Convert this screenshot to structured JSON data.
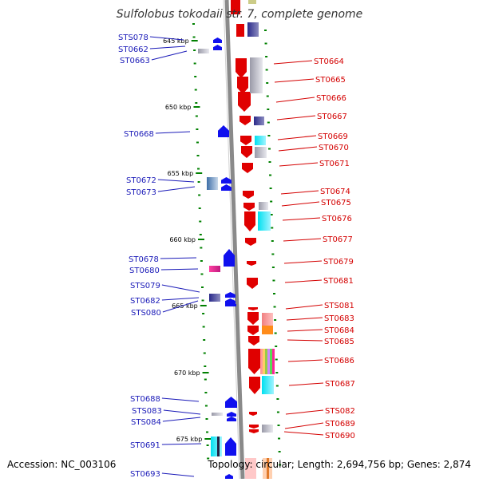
{
  "title": "Sulfolobus tokodaii str. 7, complete genome",
  "footer": {
    "accession": "Accession: NC_003106",
    "topology": "Topology: circular; Length: 2,694,756 bp; Genes: 2,874"
  },
  "colors": {
    "forward": "#e00000",
    "reverse": "#1010ee",
    "backbone": "#888888",
    "tick": "#008000",
    "left_label": "#1a1ab8",
    "right_label": "#d40000"
  },
  "scale": {
    "labels": [
      "645 kbp",
      "650 kbp",
      "655 kbp",
      "660 kbp",
      "665 kbp",
      "670 kbp",
      "675 kbp"
    ]
  },
  "genes_left": [
    "STS078",
    "ST0662",
    "ST0663",
    "ST0668",
    "ST0672",
    "ST0673",
    "ST0678",
    "ST0680",
    "STS079",
    "ST0682",
    "STS080",
    "ST0688",
    "STS083",
    "STS084",
    "ST0691",
    "ST0693"
  ],
  "genes_right": [
    "ST0664",
    "ST0665",
    "ST0666",
    "ST0667",
    "ST0669",
    "ST0670",
    "ST0671",
    "ST0674",
    "ST0675",
    "ST0676",
    "ST0677",
    "ST0679",
    "ST0681",
    "STS081",
    "ST0683",
    "ST0684",
    "ST0685",
    "ST0686",
    "ST0687",
    "STS082",
    "ST0689",
    "ST0690"
  ]
}
